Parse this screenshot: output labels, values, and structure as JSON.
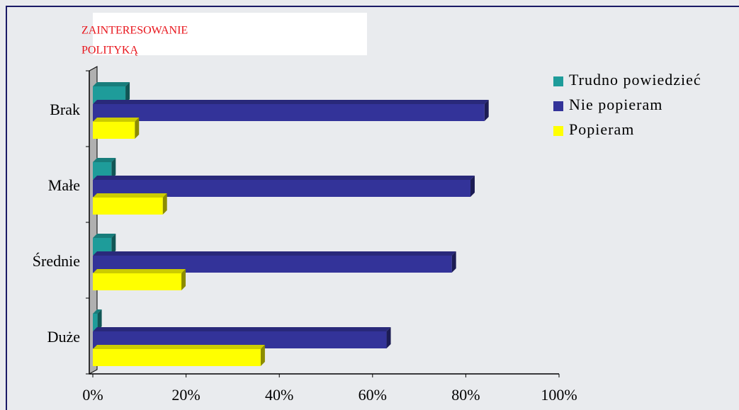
{
  "chart_data": {
    "type": "bar",
    "orientation": "horizontal",
    "title_lines": [
      "ZAINTERESOWANIE",
      "POLITYKĄ"
    ],
    "categories": [
      "Brak",
      "Małe",
      "Średnie",
      "Duże"
    ],
    "series": [
      {
        "name": "Trudno powiedzieć",
        "color": "#1e9c9a",
        "values": [
          7,
          4,
          4,
          1
        ]
      },
      {
        "name": "Nie popieram",
        "color": "#333399",
        "values": [
          84,
          81,
          77,
          63
        ]
      },
      {
        "name": "Popieram",
        "color": "#ffff00",
        "values": [
          9,
          15,
          19,
          36
        ]
      }
    ],
    "xlim": [
      0,
      100
    ],
    "xticks": [
      {
        "value": 0,
        "label": "0%"
      },
      {
        "value": 20,
        "label": "20%"
      },
      {
        "value": 40,
        "label": "40%"
      },
      {
        "value": 60,
        "label": "60%"
      },
      {
        "value": 80,
        "label": "80%"
      },
      {
        "value": 100,
        "label": "100%"
      }
    ],
    "legend": "right"
  }
}
